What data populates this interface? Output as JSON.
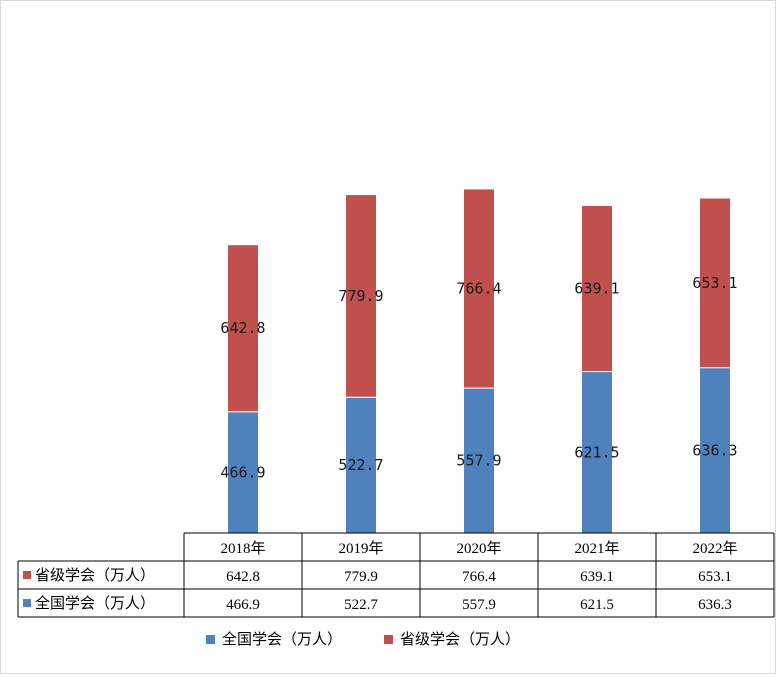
{
  "chart_data": {
    "type": "bar",
    "stacked": true,
    "categories": [
      "2018年",
      "2019年",
      "2020年",
      "2021年",
      "2022年"
    ],
    "series": [
      {
        "name": "全国学会（万人）",
        "values": [
          466.9,
          522.7,
          557.9,
          621.5,
          636.3
        ],
        "color": "#4f81bd"
      },
      {
        "name": "省级学会（万人）",
        "values": [
          642.8,
          779.9,
          766.4,
          639.1,
          653.1
        ],
        "color": "#c0504d"
      }
    ],
    "data_table": {
      "rows": [
        {
          "label": "省级学会（万人）",
          "values": [
            "642.8",
            "779.9",
            "766.4",
            "639.1",
            "653.1"
          ],
          "color": "#c0504d"
        },
        {
          "label": "全国学会（万人）",
          "values": [
            "466.9",
            "522.7",
            "557.9",
            "621.5",
            "636.3"
          ],
          "color": "#4f81bd"
        }
      ]
    },
    "ylim": [
      0,
      1400
    ],
    "grid": false,
    "legend": "bottom",
    "title": "",
    "xlabel": "",
    "ylabel": ""
  }
}
